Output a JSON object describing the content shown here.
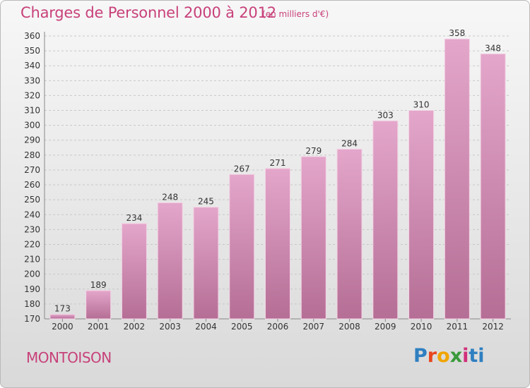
{
  "header": {
    "title": "Charges de Personnel 2000 à 2012",
    "unit_note": "(en milliers d'€)"
  },
  "footer": {
    "town": "MONTOISON",
    "brand": [
      "P",
      "r",
      "o",
      "x",
      "i",
      "ti"
    ]
  },
  "colors": {
    "bar_top": "#e4a6cb",
    "bar_bottom": "#b56e95",
    "accent": "#c8417a"
  },
  "chart_data": {
    "type": "bar",
    "title": "Charges de Personnel 2000 à 2012",
    "subtitle": "(en milliers d'€)",
    "categories": [
      "2000",
      "2001",
      "2002",
      "2003",
      "2004",
      "2005",
      "2006",
      "2007",
      "2008",
      "2009",
      "2010",
      "2011",
      "2012"
    ],
    "values": [
      173,
      189,
      234,
      248,
      245,
      267,
      271,
      279,
      284,
      303,
      310,
      358,
      348
    ],
    "ylim": [
      170,
      360
    ],
    "ytick_step": 10,
    "grid": true,
    "legend": "none"
  }
}
